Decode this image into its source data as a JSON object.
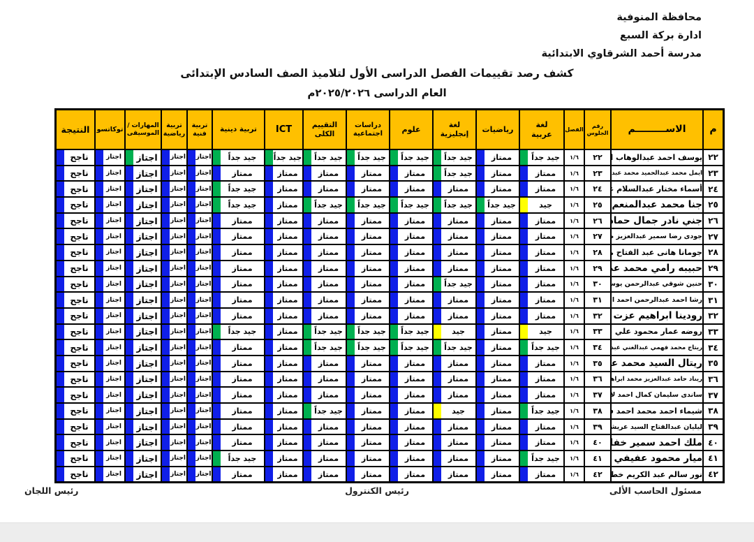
{
  "header": {
    "governorate": "محافظة المنوفية",
    "administration": "ادارة بركة السبع",
    "school": "مدرسة أحمد الشرقاوي الابتدائية",
    "title": "كشف رصد تقييمات الفصل الدراسى الأول لتلاميذ الصف السادس الإبتدائى",
    "academic_year": "العام الدراسى ٢٠٢٥/٢٠٢٦م"
  },
  "footer": {
    "right": "مسئول الحاسب الألى",
    "center": "رئيس الكنترول",
    "left": "رئيس اللجان"
  },
  "colors": {
    "header_bg": "#ffc000",
    "blue": "#101fe8",
    "green": "#00b050",
    "yellow": "#ffff00"
  },
  "table": {
    "columns": [
      {
        "key": "no",
        "lines": [
          "م"
        ]
      },
      {
        "key": "name",
        "lines": [
          "الاســـــــــم"
        ]
      },
      {
        "key": "seat",
        "lines": [
          "رقم",
          "الجلوس"
        ]
      },
      {
        "key": "cls",
        "lines": [
          "الفصل"
        ]
      },
      {
        "key": "arabic",
        "lines": [
          "لغة",
          "عربية"
        ]
      },
      {
        "key": "math",
        "lines": [
          "رياضيات"
        ]
      },
      {
        "key": "english",
        "lines": [
          "لغة",
          "إنجليزية"
        ]
      },
      {
        "key": "science",
        "lines": [
          "علوم"
        ]
      },
      {
        "key": "social",
        "lines": [
          "دراسات",
          "اجتماعية"
        ]
      },
      {
        "key": "overall",
        "lines": [
          "التقييم",
          "الكلى"
        ]
      },
      {
        "key": "ict",
        "lines": [
          "ICT"
        ]
      },
      {
        "key": "religion",
        "lines": [
          "تربية دينية"
        ]
      },
      {
        "key": "art",
        "lines": [
          "تربية",
          "فنية"
        ]
      },
      {
        "key": "pe",
        "lines": [
          "تربية",
          "رياضية"
        ]
      },
      {
        "key": "skills",
        "lines": [
          "المهارات /",
          "الموسيقى"
        ]
      },
      {
        "key": "tokkatsu",
        "lines": [
          "توكاتسو"
        ]
      },
      {
        "key": "result",
        "lines": [
          "النتيجة"
        ]
      }
    ],
    "mark_types": {
      "M": {
        "text": "ممتاز",
        "color": "blue"
      },
      "VG": {
        "text": "جيد جداً",
        "color": "green"
      },
      "G": {
        "text": "جيد",
        "color": "yellow"
      },
      "P": {
        "text": "اجتاز",
        "color": "blue"
      },
      "PG": {
        "text": "اجتاز",
        "color": "green"
      },
      "N": {
        "text": "ناجح",
        "color": "blue"
      }
    },
    "rows": [
      {
        "no": "٢٢",
        "name": "يوسف احمد عبدالوهاب الاكحل",
        "seat": "٢٢",
        "cls": "١/٦",
        "marks": [
          "VG",
          "M",
          "VG",
          "VG",
          "VG",
          "VG",
          "VG",
          "VG",
          "P",
          "P",
          "PG",
          "P",
          "N"
        ]
      },
      {
        "no": "٢٣",
        "name": "ايمل محمد عبدالحميد محمد عبد الخالق",
        "seat": "٢٣",
        "cls": "١/٦",
        "marks": [
          "M",
          "M",
          "VG",
          "M",
          "M",
          "M",
          "M",
          "M",
          "P",
          "P",
          "P",
          "P",
          "N"
        ]
      },
      {
        "no": "٢٤",
        "name": "أسماء مختار عبدالسلام عامر",
        "seat": "٢٤",
        "cls": "١/٦",
        "marks": [
          "M",
          "M",
          "M",
          "M",
          "M",
          "M",
          "M",
          "VG",
          "P",
          "P",
          "P",
          "P",
          "N"
        ]
      },
      {
        "no": "٢٥",
        "name": "جنا محمد عبدالمنعم بكر",
        "seat": "٢٥",
        "cls": "١/٦",
        "marks": [
          "G",
          "VG",
          "VG",
          "VG",
          "VG",
          "VG",
          "M",
          "VG",
          "P",
          "P",
          "P",
          "P",
          "N"
        ]
      },
      {
        "no": "٢٦",
        "name": "جني نادر جمال حماد",
        "seat": "٢٦",
        "cls": "١/٦",
        "marks": [
          "M",
          "M",
          "M",
          "M",
          "M",
          "M",
          "M",
          "M",
          "P",
          "P",
          "P",
          "P",
          "N"
        ]
      },
      {
        "no": "٢٧",
        "name": "جودى رضا سمير عبدالعزيز صالح",
        "seat": "٢٧",
        "cls": "١/٦",
        "marks": [
          "M",
          "M",
          "M",
          "M",
          "M",
          "M",
          "M",
          "M",
          "P",
          "P",
          "P",
          "P",
          "N"
        ]
      },
      {
        "no": "٢٨",
        "name": "جومانا هانى عبد الفتاح مطر",
        "seat": "٢٨",
        "cls": "١/٦",
        "marks": [
          "M",
          "M",
          "M",
          "M",
          "M",
          "M",
          "M",
          "M",
          "P",
          "P",
          "P",
          "P",
          "N"
        ]
      },
      {
        "no": "٢٩",
        "name": "حبيبه رامي محمد عطاالله",
        "seat": "٢٩",
        "cls": "١/٦",
        "marks": [
          "M",
          "M",
          "M",
          "M",
          "M",
          "M",
          "M",
          "M",
          "P",
          "P",
          "P",
          "P",
          "N"
        ]
      },
      {
        "no": "٣٠",
        "name": "حنين شوقي عبدالرحمن يوسف احمد",
        "seat": "٣٠",
        "cls": "١/٦",
        "marks": [
          "M",
          "M",
          "VG",
          "M",
          "M",
          "M",
          "M",
          "M",
          "P",
          "P",
          "P",
          "P",
          "N"
        ]
      },
      {
        "no": "٣١",
        "name": "رشا احمد عبدالرحمن احمد الشرقاوي",
        "seat": "٣١",
        "cls": "١/٦",
        "marks": [
          "M",
          "M",
          "M",
          "M",
          "M",
          "M",
          "M",
          "M",
          "P",
          "P",
          "P",
          "P",
          "N"
        ]
      },
      {
        "no": "٣٢",
        "name": "رودينا ابراهيم عزت دياب",
        "seat": "٣٢",
        "cls": "١/٦",
        "marks": [
          "M",
          "M",
          "M",
          "M",
          "M",
          "M",
          "M",
          "M",
          "P",
          "P",
          "P",
          "P",
          "N"
        ]
      },
      {
        "no": "٣٣",
        "name": "روضه عمار محمود علي نصار",
        "seat": "٣٣",
        "cls": "١/٦",
        "marks": [
          "G",
          "M",
          "G",
          "VG",
          "VG",
          "VG",
          "M",
          "VG",
          "P",
          "P",
          "P",
          "P",
          "N"
        ]
      },
      {
        "no": "٣٤",
        "name": "ريتاج محمد فهمي عبدالغني عبدالمقصود",
        "seat": "٣٤",
        "cls": "١/٦",
        "marks": [
          "VG",
          "M",
          "VG",
          "VG",
          "VG",
          "VG",
          "M",
          "M",
          "P",
          "P",
          "P",
          "P",
          "N"
        ]
      },
      {
        "no": "٣٥",
        "name": "ريتال السيد محمد عفيفى",
        "seat": "٣٥",
        "cls": "١/٦",
        "marks": [
          "M",
          "M",
          "M",
          "M",
          "M",
          "M",
          "M",
          "M",
          "P",
          "P",
          "P",
          "P",
          "N"
        ]
      },
      {
        "no": "٣٦",
        "name": "ريناد حامد عبدالعزيز محمد ابراهيم",
        "seat": "٣٦",
        "cls": "١/٦",
        "marks": [
          "M",
          "M",
          "M",
          "M",
          "M",
          "M",
          "M",
          "M",
          "P",
          "P",
          "P",
          "P",
          "N"
        ]
      },
      {
        "no": "٣٧",
        "name": "ساندى سليمان كمال احمد لاشين",
        "seat": "٣٧",
        "cls": "١/٦",
        "marks": [
          "M",
          "M",
          "M",
          "M",
          "M",
          "M",
          "M",
          "M",
          "P",
          "P",
          "P",
          "P",
          "N"
        ]
      },
      {
        "no": "٣٨",
        "name": "شيماء احمد محمد احمد فرغلى",
        "seat": "٣٨",
        "cls": "١/٦",
        "marks": [
          "VG",
          "M",
          "G",
          "M",
          "M",
          "VG",
          "M",
          "M",
          "P",
          "P",
          "P",
          "P",
          "N"
        ]
      },
      {
        "no": "٣٩",
        "name": "ليليان عبدالفتاح السيد عريشه",
        "seat": "٣٩",
        "cls": "١/٦",
        "marks": [
          "M",
          "M",
          "M",
          "M",
          "M",
          "M",
          "M",
          "M",
          "P",
          "P",
          "P",
          "P",
          "N"
        ]
      },
      {
        "no": "٤٠",
        "name": "ملك احمد سمير خفاجى",
        "seat": "٤٠",
        "cls": "١/٦",
        "marks": [
          "M",
          "M",
          "M",
          "M",
          "M",
          "M",
          "M",
          "M",
          "P",
          "P",
          "P",
          "P",
          "N"
        ]
      },
      {
        "no": "٤١",
        "name": "ميار محمود عفيفي بيومي",
        "seat": "٤١",
        "cls": "١/٦",
        "marks": [
          "VG",
          "M",
          "M",
          "M",
          "M",
          "M",
          "M",
          "VG",
          "P",
          "P",
          "P",
          "P",
          "N"
        ]
      },
      {
        "no": "٤٢",
        "name": "نور سالم عبد الكريم خطاب",
        "seat": "٤٢",
        "cls": "١/٦",
        "marks": [
          "M",
          "M",
          "M",
          "M",
          "M",
          "M",
          "M",
          "M",
          "P",
          "P",
          "P",
          "P",
          "N"
        ]
      }
    ]
  }
}
